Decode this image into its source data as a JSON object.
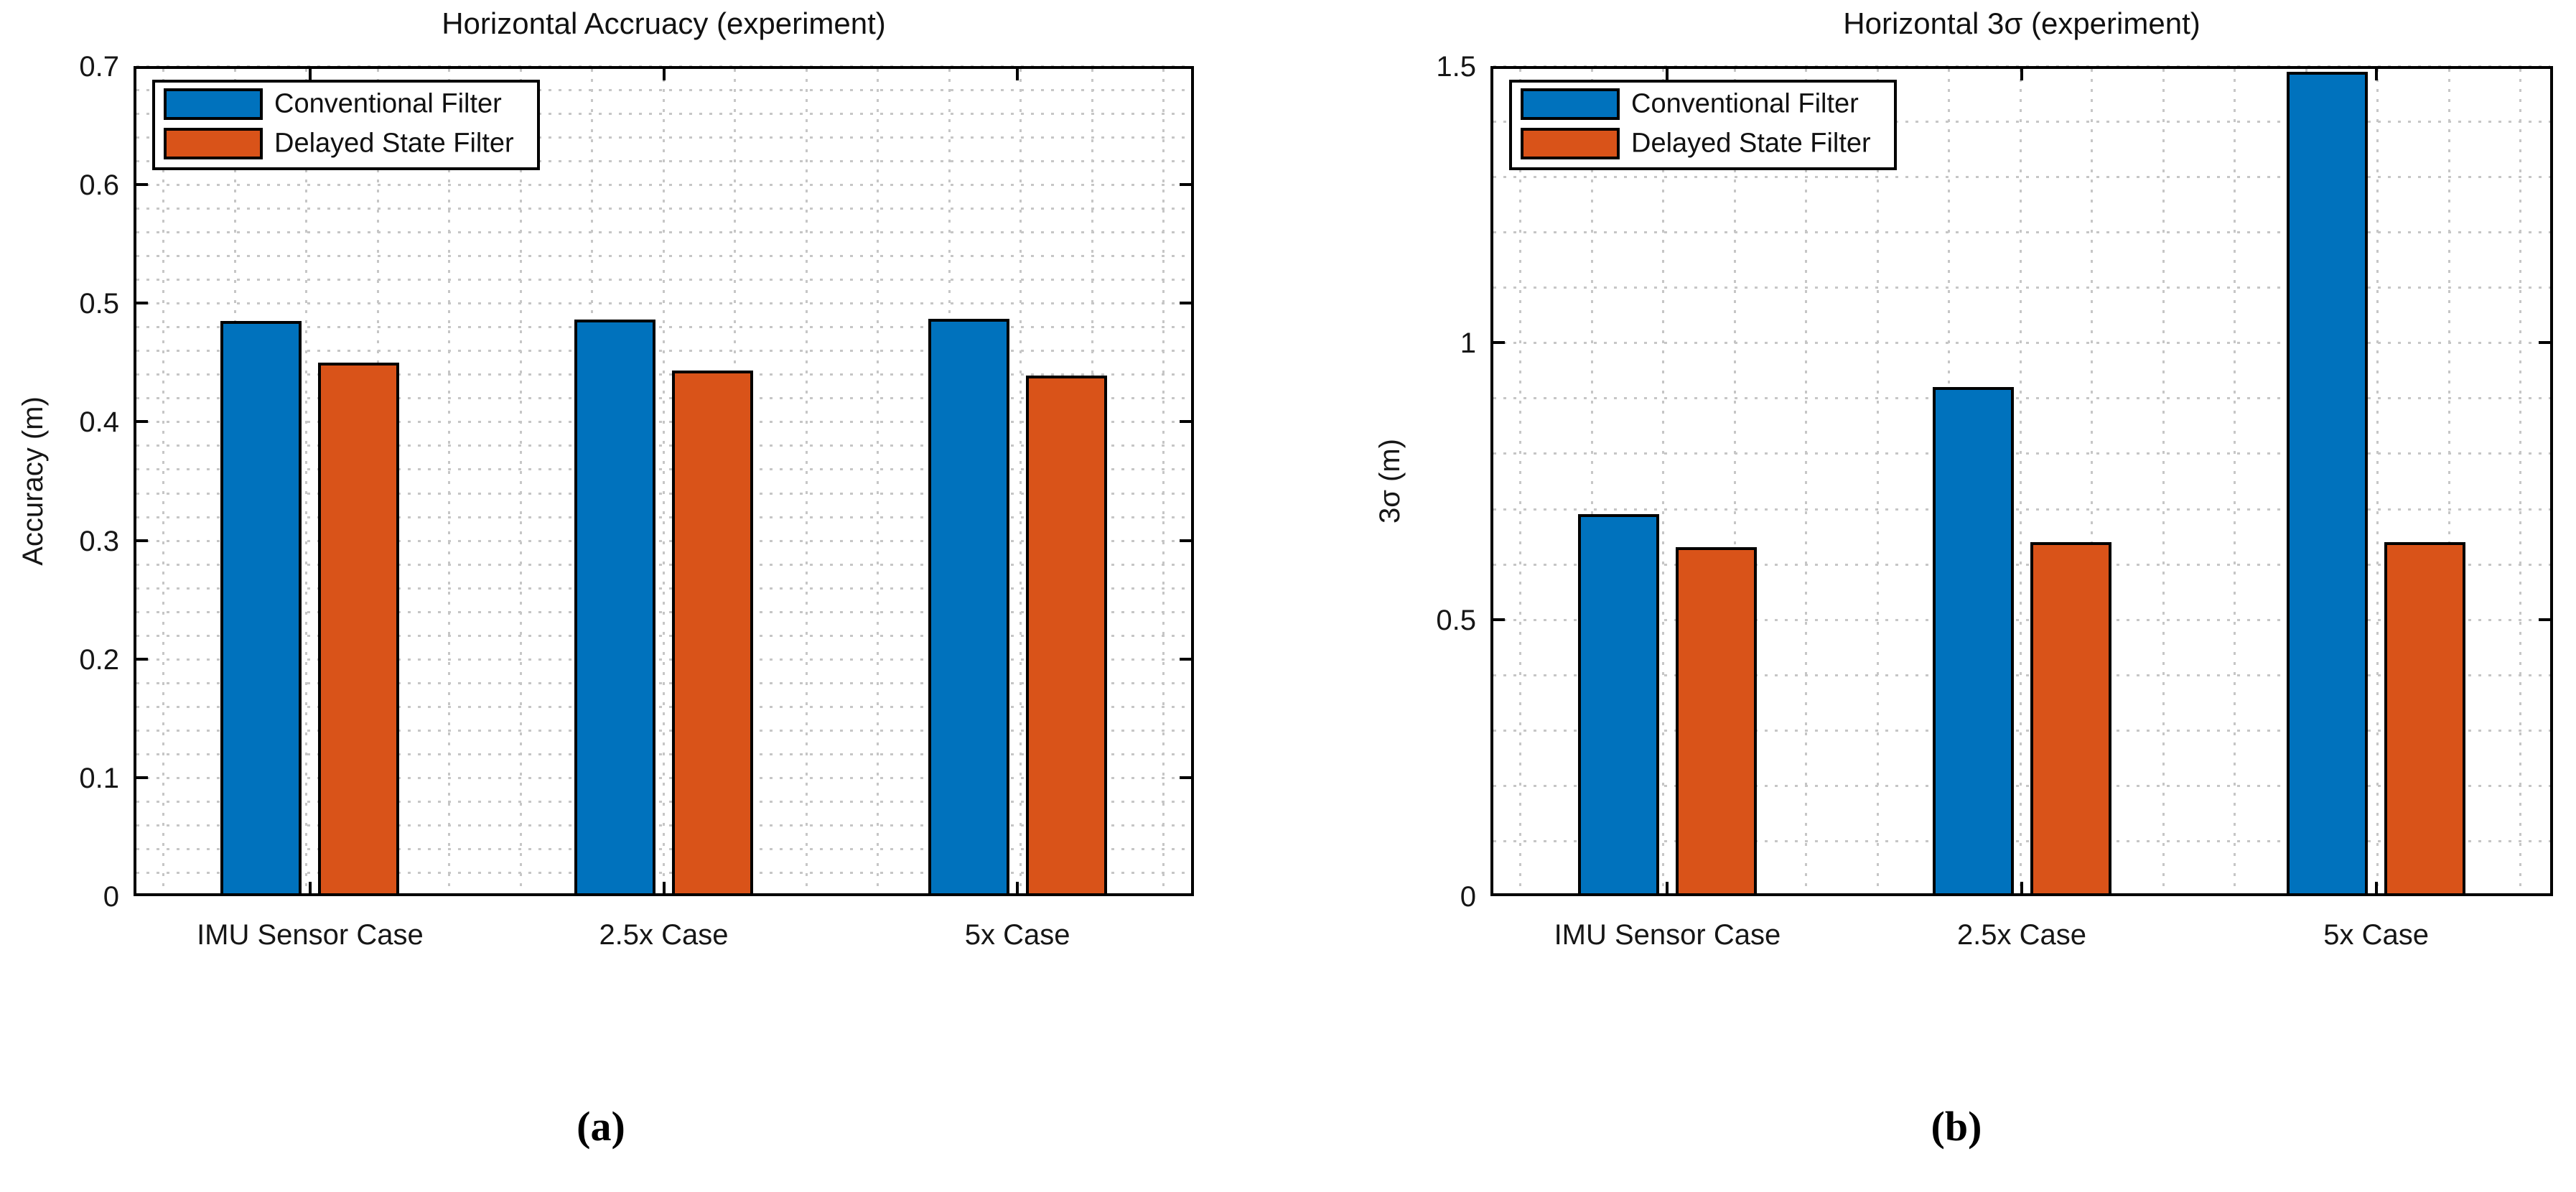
{
  "colors": {
    "conventional": "#0072BD",
    "delayed": "#D95319",
    "bar_edge": "#000000",
    "grid": "#c6c6c6",
    "axis": "#000000",
    "text": "#161616"
  },
  "figure": {
    "caption_a": "(a)",
    "caption_b": "(b)"
  },
  "chart_data": [
    {
      "type": "bar",
      "title": "Horizontal Accruacy (experiment)",
      "xlabel": "",
      "ylabel": "Accuracy (m)",
      "categories": [
        "IMU Sensor Case",
        "2.5x Case",
        "5x Case"
      ],
      "series": [
        {
          "name": "Conventional Filter",
          "values": [
            0.485,
            0.486,
            0.487
          ]
        },
        {
          "name": "Delayed State Filter",
          "values": [
            0.45,
            0.443,
            0.439
          ]
        }
      ],
      "ylim": [
        0,
        0.7
      ],
      "yticks": [
        0,
        0.1,
        0.2,
        0.3,
        0.4,
        0.5,
        0.6,
        0.7
      ],
      "ytick_labels": [
        "0",
        "0.1",
        "0.2",
        "0.3",
        "0.4",
        "0.5",
        "0.6",
        "0.7"
      ],
      "minor_step": 0.02,
      "grid": true,
      "legend_position": "top-left"
    },
    {
      "type": "bar",
      "title": "Horizontal 3σ (experiment)",
      "xlabel": "",
      "ylabel": "3σ (m)",
      "categories": [
        "IMU Sensor Case",
        "2.5x Case",
        "5x Case"
      ],
      "series": [
        {
          "name": "Conventional Filter",
          "values": [
            0.69,
            0.92,
            1.49
          ]
        },
        {
          "name": "Delayed State Filter",
          "values": [
            0.63,
            0.64,
            0.64
          ]
        }
      ],
      "ylim": [
        0,
        1.5
      ],
      "yticks": [
        0,
        0.5,
        1,
        1.5
      ],
      "ytick_labels": [
        "0",
        "0.5",
        "1",
        "1.5"
      ],
      "minor_step": 0.1,
      "grid": true,
      "legend_position": "top-left"
    }
  ]
}
